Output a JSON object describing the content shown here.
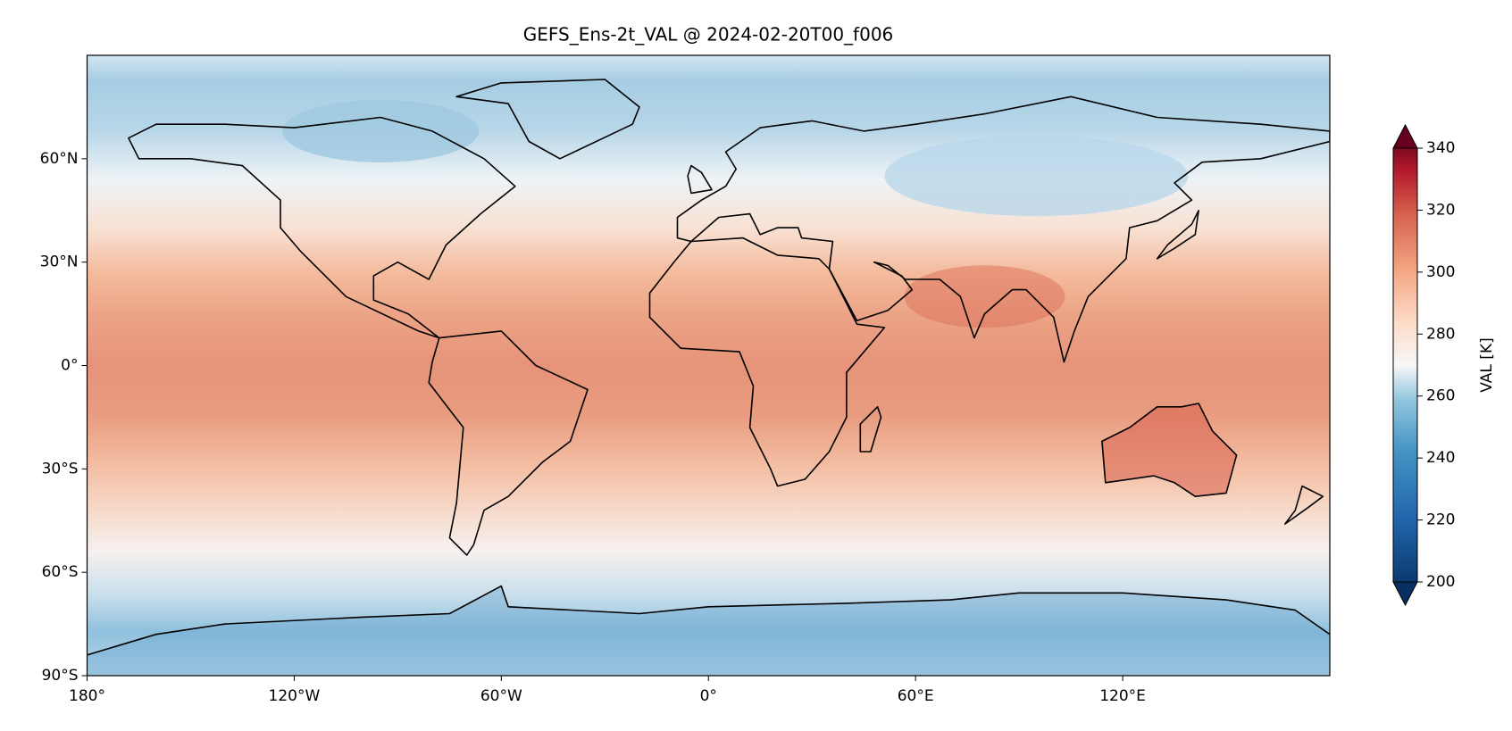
{
  "title": "GEFS_Ens-2t_VAL @ 2024-02-20T00_f006",
  "map": {
    "xlim": [
      -180,
      180
    ],
    "ylim": [
      -90,
      90
    ],
    "xticks": [
      {
        "value": -180,
        "label": "180°"
      },
      {
        "value": -120,
        "label": "120°W"
      },
      {
        "value": -60,
        "label": "60°W"
      },
      {
        "value": 0,
        "label": "0°"
      },
      {
        "value": 60,
        "label": "60°E"
      },
      {
        "value": 120,
        "label": "120°E"
      }
    ],
    "yticks": [
      {
        "value": -90,
        "label": "90°S"
      },
      {
        "value": -60,
        "label": "60°S"
      },
      {
        "value": -30,
        "label": "30°S"
      },
      {
        "value": 0,
        "label": "0°"
      },
      {
        "value": 30,
        "label": "30°N"
      },
      {
        "value": 60,
        "label": "60°N"
      }
    ]
  },
  "colorbar": {
    "label": "VAL [K]",
    "lim": [
      200,
      340
    ],
    "ticks": [
      200,
      220,
      240,
      260,
      280,
      300,
      320,
      340
    ]
  }
}
